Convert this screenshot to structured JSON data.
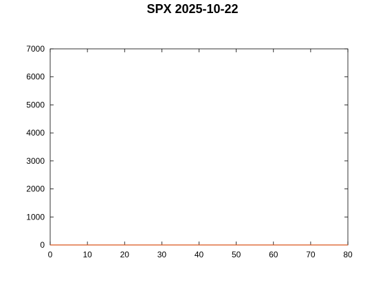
{
  "chart_data": {
    "type": "line",
    "title": "SPX 2025-10-22",
    "xlabel": "",
    "ylabel": "",
    "xlim": [
      0,
      80
    ],
    "ylim": [
      0,
      7000
    ],
    "xticks": [
      0,
      10,
      20,
      30,
      40,
      50,
      60,
      70,
      80
    ],
    "yticks": [
      0,
      1000,
      2000,
      3000,
      4000,
      5000,
      6000,
      7000
    ],
    "grid": false,
    "legend": "none",
    "series": [
      {
        "color": "#d95319",
        "x": [
          0,
          80
        ],
        "y": [
          0,
          0
        ]
      }
    ]
  }
}
